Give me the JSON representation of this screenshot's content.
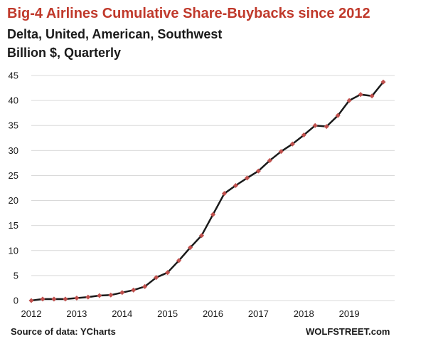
{
  "header": {
    "title": "Big-4 Airlines Cumulative Share-Buybacks  since 2012",
    "subtitle_line1": "Delta, United, American, Southwest",
    "subtitle_line2": "Billion $, Quarterly"
  },
  "footer": {
    "source": "Source of data: YCharts",
    "site": "WOLFSTREET.com"
  },
  "colors": {
    "title": "#c0392b",
    "line": "#1a1a1a",
    "marker": "#c0504d",
    "grid": "#d9d9d9"
  },
  "chart_data": {
    "type": "line",
    "title": "Big-4 Airlines Cumulative Share-Buybacks  since 2012",
    "xlabel": "",
    "ylabel": "",
    "ylim": [
      0,
      45
    ],
    "yticks": [
      0,
      5,
      10,
      15,
      20,
      25,
      30,
      35,
      40,
      45
    ],
    "xlim": [
      2012,
      2020
    ],
    "xticks": [
      "2012",
      "2013",
      "2014",
      "2015",
      "2016",
      "2017",
      "2018",
      "2019"
    ],
    "grid": true,
    "series": [
      {
        "x": [
          2012.0,
          2012.25,
          2012.5,
          2012.75,
          2013.0,
          2013.25,
          2013.5,
          2013.75,
          2014.0,
          2014.25,
          2014.5,
          2014.75,
          2015.0,
          2015.25,
          2015.5,
          2015.75,
          2016.0,
          2016.25,
          2016.5,
          2016.75,
          2017.0,
          2017.25,
          2017.5,
          2017.75,
          2018.0,
          2018.25,
          2018.5,
          2018.75,
          2019.0,
          2019.25,
          2019.5,
          2019.75
        ],
        "values": [
          0.0,
          0.3,
          0.3,
          0.3,
          0.5,
          0.7,
          1.0,
          1.1,
          1.6,
          2.1,
          2.8,
          4.6,
          5.6,
          8.0,
          10.6,
          13.0,
          17.2,
          21.4,
          23.0,
          24.5,
          25.9,
          28.0,
          29.8,
          31.3,
          33.1,
          35.0,
          34.8,
          37.0,
          40.0,
          41.2,
          40.9,
          43.7
        ]
      }
    ]
  }
}
